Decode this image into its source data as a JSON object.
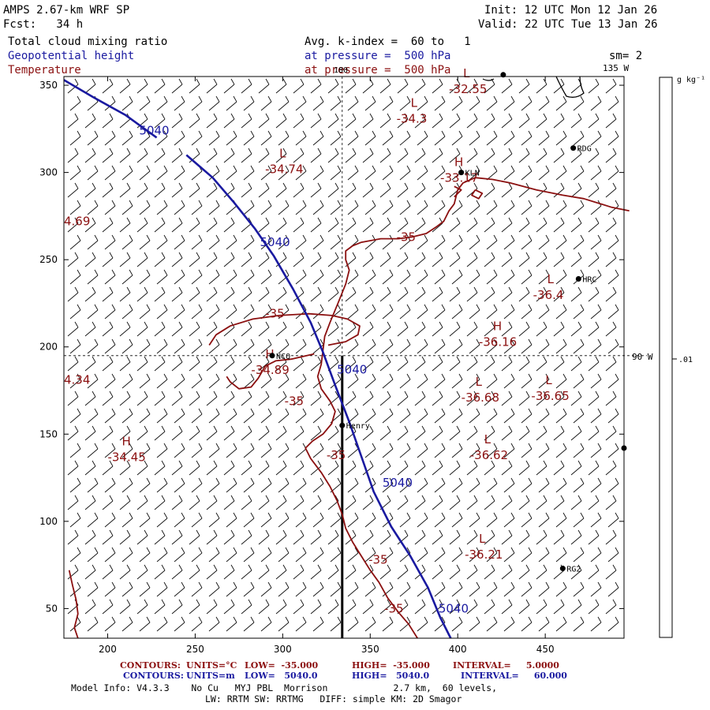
{
  "header": {
    "model": "AMPS 2.67-km WRF SP",
    "forecast": "Fcst:   34 h",
    "init": "Init: 12 UTC Mon 12 Jan 26",
    "valid": "Valid: 22 UTC Tue 13 Jan 26",
    "field1": "Total cloud mixing ratio",
    "field2": "Geopotential height",
    "field3": "Temperature",
    "avg_line": "Avg. k-index =  60 to   1",
    "pressure1": "at pressure =  500 hPa",
    "pressure2": "at pressure =  500 hPa",
    "smoothing": "sm= 2"
  },
  "colorbar": {
    "units": "g kg⁻¹",
    "tick_label": ".01",
    "tick_value": 0.01
  },
  "lon_labels": {
    "top_180": "180",
    "top_135w": "135 W",
    "right_90w": "90 W"
  },
  "stations": [
    {
      "name": "RDG",
      "x": 466,
      "y": 314
    },
    {
      "name": "KLN",
      "x": 402,
      "y": 300
    },
    {
      "name": "HRC",
      "x": 469,
      "y": 239
    },
    {
      "name": "NCQ",
      "x": 294,
      "y": 195
    },
    {
      "name": "Henry",
      "x": 334,
      "y": 155
    },
    {
      "name": "RG2",
      "x": 460,
      "y": 73
    },
    {
      "name": "",
      "x": 495,
      "y": 142
    },
    {
      "name": "",
      "x": 426,
      "y": 356
    }
  ],
  "chart_data": {
    "type": "contour_map",
    "xlim": [
      175,
      495
    ],
    "ylim": [
      33,
      355
    ],
    "xticks": [
      200,
      250,
      300,
      350,
      400,
      450
    ],
    "yticks": [
      50,
      100,
      150,
      200,
      250,
      300,
      350
    ],
    "grid_reference_lines": {
      "x": 334,
      "y": 195
    },
    "cross_section_line": {
      "x": 334,
      "y0": 33,
      "y1": 195
    },
    "geopotential_contours": [
      {
        "level": "5040",
        "points": [
          [
            175,
            353
          ],
          [
            192,
            343
          ],
          [
            210,
            333
          ],
          [
            228,
            320
          ]
        ]
      },
      {
        "level": "5040",
        "points": [
          [
            245,
            310
          ],
          [
            260,
            297
          ],
          [
            272,
            283
          ],
          [
            284,
            268
          ],
          [
            295,
            252
          ],
          [
            306,
            233
          ],
          [
            316,
            214
          ],
          [
            323,
            197
          ],
          [
            330,
            178
          ],
          [
            338,
            157
          ],
          [
            345,
            137
          ],
          [
            352,
            117
          ],
          [
            362,
            97
          ],
          [
            373,
            80
          ],
          [
            383,
            62
          ],
          [
            390,
            45
          ],
          [
            396,
            33
          ]
        ]
      }
    ],
    "temperature_contours": [
      {
        "level": "-35",
        "points": [
          [
            498,
            278
          ],
          [
            488,
            280
          ],
          [
            472,
            285
          ],
          [
            460,
            287
          ],
          [
            445,
            290
          ],
          [
            430,
            294
          ],
          [
            420,
            296
          ],
          [
            410,
            297
          ],
          [
            403,
            294
          ],
          [
            400,
            290
          ],
          [
            398,
            282
          ],
          [
            395,
            278
          ],
          [
            392,
            272
          ],
          [
            388,
            269
          ],
          [
            382,
            265
          ],
          [
            374,
            263
          ],
          [
            366,
            262
          ],
          [
            356,
            262
          ],
          [
            345,
            260
          ],
          [
            340,
            258
          ]
        ]
      },
      {
        "level": "-35",
        "points": [
          [
            340,
            258
          ],
          [
            336,
            255
          ],
          [
            336,
            250
          ],
          [
            338,
            244
          ],
          [
            336,
            236
          ],
          [
            332,
            226
          ],
          [
            327,
            214
          ],
          [
            324,
            206
          ],
          [
            323,
            198
          ],
          [
            322,
            190
          ],
          [
            320,
            183
          ],
          [
            322,
            176
          ],
          [
            327,
            169
          ],
          [
            330,
            163
          ],
          [
            328,
            156
          ],
          [
            323,
            150
          ],
          [
            317,
            146
          ],
          [
            313,
            142
          ],
          [
            316,
            136
          ],
          [
            322,
            128
          ],
          [
            327,
            120
          ],
          [
            331,
            112
          ],
          [
            334,
            104
          ],
          [
            336,
            96
          ],
          [
            340,
            88
          ],
          [
            345,
            80
          ],
          [
            350,
            72
          ],
          [
            355,
            65
          ],
          [
            360,
            56
          ],
          [
            366,
            48
          ],
          [
            372,
            41
          ],
          [
            377,
            33
          ]
        ]
      },
      {
        "level": "-35",
        "points": [
          [
            318,
            196
          ],
          [
            305,
            193
          ],
          [
            296,
            192
          ],
          [
            290,
            189
          ],
          [
            286,
            182
          ],
          [
            282,
            177
          ],
          [
            275,
            176
          ],
          [
            270,
            180
          ],
          [
            268,
            183
          ]
        ]
      },
      {
        "level": "-35",
        "points": [
          [
            258,
            201
          ],
          [
            262,
            207
          ],
          [
            270,
            212
          ],
          [
            283,
            216
          ],
          [
            298,
            218
          ],
          [
            315,
            219
          ],
          [
            328,
            218
          ],
          [
            337,
            216
          ],
          [
            344,
            212
          ],
          [
            343,
            207
          ],
          [
            336,
            203
          ],
          [
            326,
            201
          ]
        ]
      },
      {
        "level": "-35",
        "points": [
          [
            178,
            72
          ],
          [
            180,
            63
          ],
          [
            182,
            55
          ],
          [
            183,
            47
          ],
          [
            181,
            39
          ],
          [
            183,
            33
          ]
        ]
      },
      {
        "level": "-35",
        "points": [
          [
            398,
            292
          ],
          [
            402,
            290
          ],
          [
            398,
            286
          ]
        ]
      },
      {
        "level": "-35",
        "points": [
          [
            410,
            290
          ],
          [
            414,
            288
          ],
          [
            412,
            285
          ],
          [
            408,
            287
          ],
          [
            410,
            290
          ]
        ]
      }
    ],
    "contour_labels": [
      {
        "text": "5040",
        "x": 218,
        "y": 324,
        "color": "blue"
      },
      {
        "text": "5040",
        "x": 287,
        "y": 260,
        "color": "blue"
      },
      {
        "text": "5040",
        "x": 331,
        "y": 187,
        "color": "blue"
      },
      {
        "text": "5040",
        "x": 357,
        "y": 122,
        "color": "blue"
      },
      {
        "text": "5040",
        "x": 389,
        "y": 50,
        "color": "blue"
      },
      {
        "text": "-35",
        "x": 365,
        "y": 263,
        "color": "red"
      },
      {
        "text": "-35",
        "x": 290,
        "y": 219,
        "color": "red"
      },
      {
        "text": "-35",
        "x": 301,
        "y": 169,
        "color": "red"
      },
      {
        "text": "-35",
        "x": 325,
        "y": 138,
        "color": "red"
      },
      {
        "text": "-35",
        "x": 349,
        "y": 78,
        "color": "red"
      },
      {
        "text": "-35",
        "x": 358,
        "y": 50,
        "color": "red"
      }
    ],
    "extrema": [
      {
        "type": "L",
        "value": "-32.55",
        "x": 395,
        "y": 351
      },
      {
        "type": "L",
        "value": "-34.3",
        "x": 365,
        "y": 334
      },
      {
        "type": "L",
        "value": "-34.74",
        "x": 290,
        "y": 305
      },
      {
        "type": "H",
        "value": "-33.17",
        "x": 390,
        "y": 300
      },
      {
        "type": "L",
        "value": "-36.4",
        "x": 443,
        "y": 233
      },
      {
        "type": "H",
        "value": "-36.16",
        "x": 412,
        "y": 206
      },
      {
        "type": "H",
        "value": "-34.89",
        "x": 282,
        "y": 190
      },
      {
        "type": "L",
        "value": "-36.68",
        "x": 402,
        "y": 174
      },
      {
        "type": "L",
        "value": "-36.65",
        "x": 442,
        "y": 175
      },
      {
        "type": "H",
        "value": "-34.45",
        "x": 200,
        "y": 140
      },
      {
        "type": "L",
        "value": "-36.62",
        "x": 407,
        "y": 141
      },
      {
        "type": "L",
        "value": "-36.21",
        "x": 404,
        "y": 84
      }
    ],
    "edge_labels": [
      {
        "text": "4.69",
        "x": 175,
        "y": 272
      },
      {
        "text": "4.34",
        "x": 175,
        "y": 181
      }
    ]
  },
  "footer": {
    "t_contours_label": "CONTOURS:",
    "t_units": "UNITS=°C",
    "t_low": "LOW=  -35.000",
    "t_high": "HIGH=  -35.000",
    "t_interval": "INTERVAL=     5.0000",
    "z_contours_label": "CONTOURS:",
    "z_units": "UNITS=m",
    "z_low": "LOW=   5040.0",
    "z_high": "HIGH=   5040.0",
    "z_interval": "INTERVAL=     60.000",
    "model_info": "Model Info: V4.3.3    No Cu   MYJ PBL  Morrison            2.7 km,  60 levels,",
    "physics": "LW: RRTM SW: RRTMG   DIFF: simple KM: 2D Smagor"
  }
}
